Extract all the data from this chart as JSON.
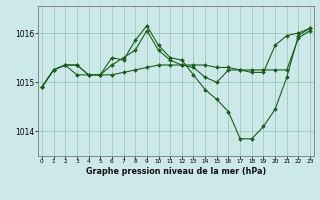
{
  "title": "Graphe pression niveau de la mer (hPa)",
  "bg_color": "#cce8e8",
  "grid_color": "#99ccbb",
  "line_color": "#1a5e1a",
  "x_min": 0,
  "x_max": 23,
  "y_min": 1013.5,
  "y_max": 1016.55,
  "yticks": [
    1014,
    1015,
    1016
  ],
  "xticks": [
    0,
    1,
    2,
    3,
    4,
    5,
    6,
    7,
    8,
    9,
    10,
    11,
    12,
    13,
    14,
    15,
    16,
    17,
    18,
    19,
    20,
    21,
    22,
    23
  ],
  "series": [
    [
      1014.9,
      1015.25,
      1015.35,
      1015.15,
      1015.15,
      1015.15,
      1015.15,
      1015.2,
      1015.25,
      1015.3,
      1015.35,
      1015.35,
      1015.35,
      1015.35,
      1015.35,
      1015.3,
      1015.3,
      1015.25,
      1015.25,
      1015.25,
      1015.25,
      1015.25,
      1015.9,
      1016.05
    ],
    [
      1014.9,
      1015.25,
      1015.35,
      1015.35,
      1015.15,
      1015.15,
      1015.5,
      1015.45,
      1015.85,
      1016.15,
      1015.75,
      1015.5,
      1015.45,
      1015.15,
      1014.85,
      1014.65,
      1014.4,
      1013.85,
      1013.85,
      1014.1,
      1014.45,
      1015.1,
      1015.95,
      1016.1
    ],
    [
      1014.9,
      1015.25,
      1015.35,
      1015.35,
      1015.15,
      1015.15,
      1015.35,
      1015.5,
      1015.65,
      1016.05,
      1015.65,
      1015.45,
      1015.35,
      1015.3,
      1015.1,
      1015.0,
      1015.25,
      1015.25,
      1015.2,
      1015.2,
      1015.75,
      1015.95,
      1016.0,
      1016.1
    ]
  ]
}
